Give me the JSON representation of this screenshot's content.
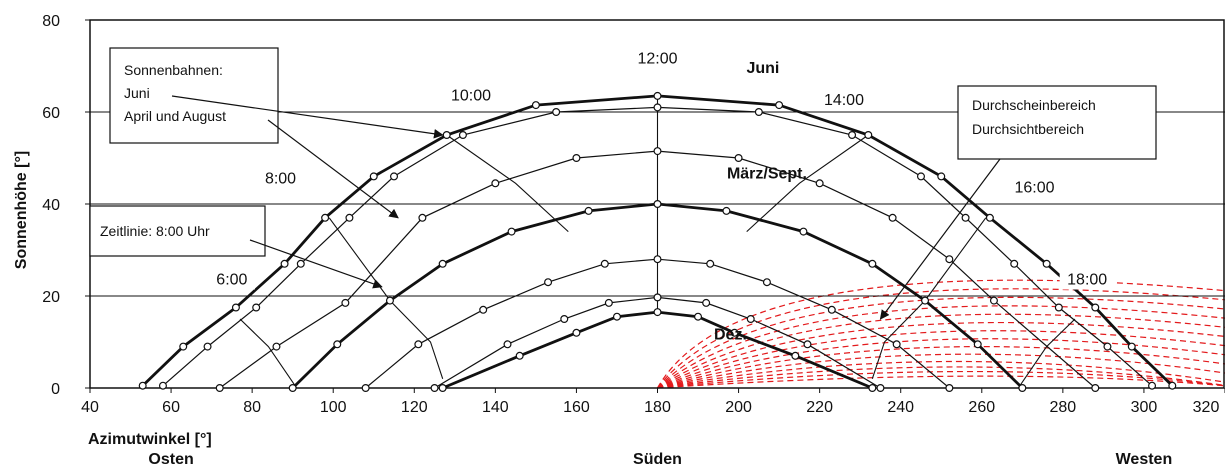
{
  "chart_data": {
    "type": "line",
    "xlabel": "Azimutwinkel [°]",
    "ylabel": "Sonnenhöhe [°]",
    "xlim": [
      40,
      320
    ],
    "ylim": [
      0,
      80
    ],
    "xticks": [
      40,
      60,
      80,
      100,
      120,
      140,
      160,
      180,
      200,
      220,
      240,
      260,
      280,
      300,
      320
    ],
    "yticks": [
      0,
      20,
      40,
      60,
      80
    ],
    "direction_labels": [
      {
        "x": 60,
        "text": "Osten"
      },
      {
        "x": 180,
        "text": "Süden"
      },
      {
        "x": 300,
        "text": "Westen"
      }
    ],
    "series": [
      {
        "name": "Juni",
        "bold": true,
        "x": [
          53,
          63,
          76,
          88,
          98,
          110,
          128,
          150,
          180,
          210,
          232,
          250,
          262,
          276,
          288,
          297,
          307
        ],
        "y": [
          0.5,
          9,
          17.5,
          27,
          37,
          46,
          55,
          61.5,
          63.5,
          61.5,
          55,
          46,
          37,
          27,
          17.5,
          9,
          0.5
        ]
      },
      {
        "x": [
          58,
          69,
          81,
          92,
          104,
          115,
          132,
          155,
          180,
          205,
          228,
          245,
          256,
          268,
          279,
          291,
          302
        ],
        "y": [
          0.5,
          9,
          17.5,
          27,
          37,
          46,
          55,
          60,
          61,
          60,
          55,
          46,
          37,
          27,
          17.5,
          9,
          0.5
        ]
      },
      {
        "x": [
          72,
          86,
          103,
          122,
          140,
          160,
          180,
          200,
          220,
          238,
          252,
          263,
          288
        ],
        "y": [
          0,
          9,
          18.5,
          37,
          44.5,
          50,
          51.5,
          50,
          44.5,
          37,
          28,
          19,
          0
        ]
      },
      {
        "name": "März/Sept.",
        "bold": true,
        "x": [
          90,
          101,
          114,
          127,
          144,
          163,
          180,
          197,
          216,
          233,
          246,
          259,
          270
        ],
        "y": [
          0,
          9.5,
          19,
          27,
          34,
          38.5,
          40,
          38.5,
          34,
          27,
          19,
          9.5,
          0
        ]
      },
      {
        "x": [
          108,
          121,
          137,
          153,
          167,
          180,
          193,
          207,
          223,
          239,
          252
        ],
        "y": [
          0,
          9.5,
          17,
          23,
          27,
          28,
          27,
          23,
          17,
          9.5,
          0
        ]
      },
      {
        "x": [
          125,
          143,
          157,
          168,
          180,
          192,
          203,
          217,
          235
        ],
        "y": [
          0,
          9.5,
          15,
          18.5,
          19.7,
          18.5,
          15,
          9.5,
          0
        ]
      },
      {
        "name": "Dez.",
        "bold": true,
        "x": [
          127,
          146,
          160,
          170,
          180,
          190,
          199,
          214,
          233
        ],
        "y": [
          0,
          7,
          12,
          15.5,
          16.5,
          15.5,
          12,
          7,
          0
        ]
      }
    ],
    "time_lines": [
      {
        "label": "6:00",
        "x": [
          77,
          84,
          91
        ],
        "y": [
          15,
          9,
          0
        ]
      },
      {
        "label": "8:00",
        "x": [
          99,
          114,
          124,
          127
        ],
        "y": [
          37,
          19,
          10,
          2
        ]
      },
      {
        "label": "10:00",
        "x": [
          128,
          145,
          158
        ],
        "y": [
          55,
          44.5,
          34
        ]
      },
      {
        "label": "12:00",
        "x": [
          180,
          180
        ],
        "y": [
          63.5,
          16.5
        ]
      },
      {
        "label": "14:00",
        "x": [
          232,
          215,
          202
        ],
        "y": [
          55,
          44.5,
          34
        ]
      },
      {
        "label": "16:00",
        "x": [
          261,
          246,
          236,
          233
        ],
        "y": [
          37,
          19,
          10,
          2
        ]
      },
      {
        "label": "18:00",
        "x": [
          283,
          276,
          269
        ],
        "y": [
          15,
          9,
          0
        ]
      }
    ],
    "time_labels": [
      {
        "text": "6:00",
        "x": 75,
        "y": 22.5
      },
      {
        "text": "8:00",
        "x": 87,
        "y": 44.5
      },
      {
        "text": "10:00",
        "x": 134,
        "y": 62.5
      },
      {
        "text": "12:00",
        "x": 180,
        "y": 70.5
      },
      {
        "text": "14:00",
        "x": 226,
        "y": 61.5
      },
      {
        "text": "16:00",
        "x": 273,
        "y": 42.5
      },
      {
        "text": "18:00",
        "x": 286,
        "y": 22.5
      }
    ],
    "series_labels": [
      {
        "text": "Juni",
        "x": 206,
        "y": 68.5
      },
      {
        "text": "März/Sept.",
        "x": 207,
        "y": 45.5
      },
      {
        "text": "Dez.",
        "x": 198,
        "y": 10.5
      }
    ],
    "callouts": [
      {
        "lines": [
          "Sonnenbahnen:",
          "Juni",
          "April und August"
        ]
      },
      {
        "lines": [
          "Zeitlinie: 8:00 Uhr"
        ]
      },
      {
        "lines": [
          "Durchscheinbereich",
          "Durchsichtbereich"
        ]
      }
    ],
    "gridlines": [
      20,
      40,
      60
    ],
    "colors": {
      "curves": "#111111",
      "transmission_region": "#e31a1c"
    }
  }
}
